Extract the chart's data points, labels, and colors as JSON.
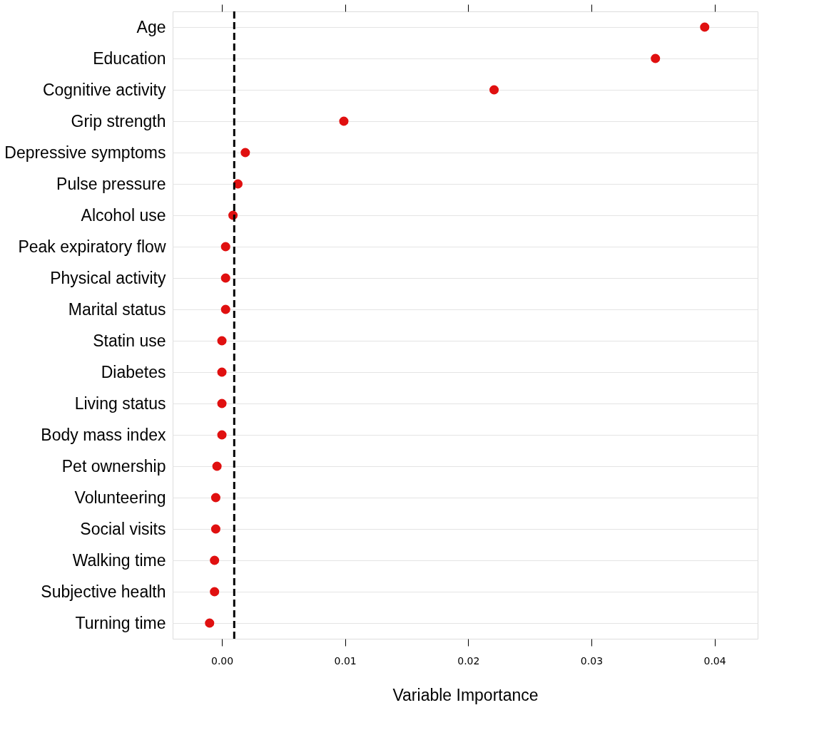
{
  "chart_data": {
    "type": "scatter",
    "xlabel": "Variable Importance",
    "categories": [
      "Age",
      "Education",
      "Cognitive activity",
      "Grip strength",
      "Depressive symptoms",
      "Pulse pressure",
      "Alcohol use",
      "Peak expiratory flow",
      "Physical activity",
      "Marital status",
      "Statin use",
      "Diabetes",
      "Living status",
      "Body mass index",
      "Pet ownership",
      "Volunteering",
      "Social visits",
      "Walking time",
      "Subjective health",
      "Turning time"
    ],
    "series": [
      {
        "color": "#e01010",
        "values": [
          0.0392,
          0.0352,
          0.0221,
          0.0099,
          0.0019,
          0.0013,
          0.0009,
          0.0003,
          0.0003,
          0.0003,
          0.0,
          0.0,
          0.0,
          0.0,
          -0.0004,
          -0.0005,
          -0.0005,
          -0.0006,
          -0.0006,
          -0.001
        ]
      }
    ],
    "xlim": [
      -0.004,
      0.0435
    ],
    "xticks": [
      {
        "value": 0,
        "label": "0.00"
      },
      {
        "value": 0.01,
        "label": "0.01"
      },
      {
        "value": 0.02,
        "label": "0.02"
      },
      {
        "value": 0.03,
        "label": "0.03"
      },
      {
        "value": 0.04,
        "label": "0.04"
      }
    ],
    "ref_lines": [
      {
        "axis": "x",
        "value": 0.001,
        "color": "#000000",
        "line_style": "dashed"
      }
    ],
    "orientation": "horizontal",
    "grid": "y",
    "marker": "circle"
  }
}
